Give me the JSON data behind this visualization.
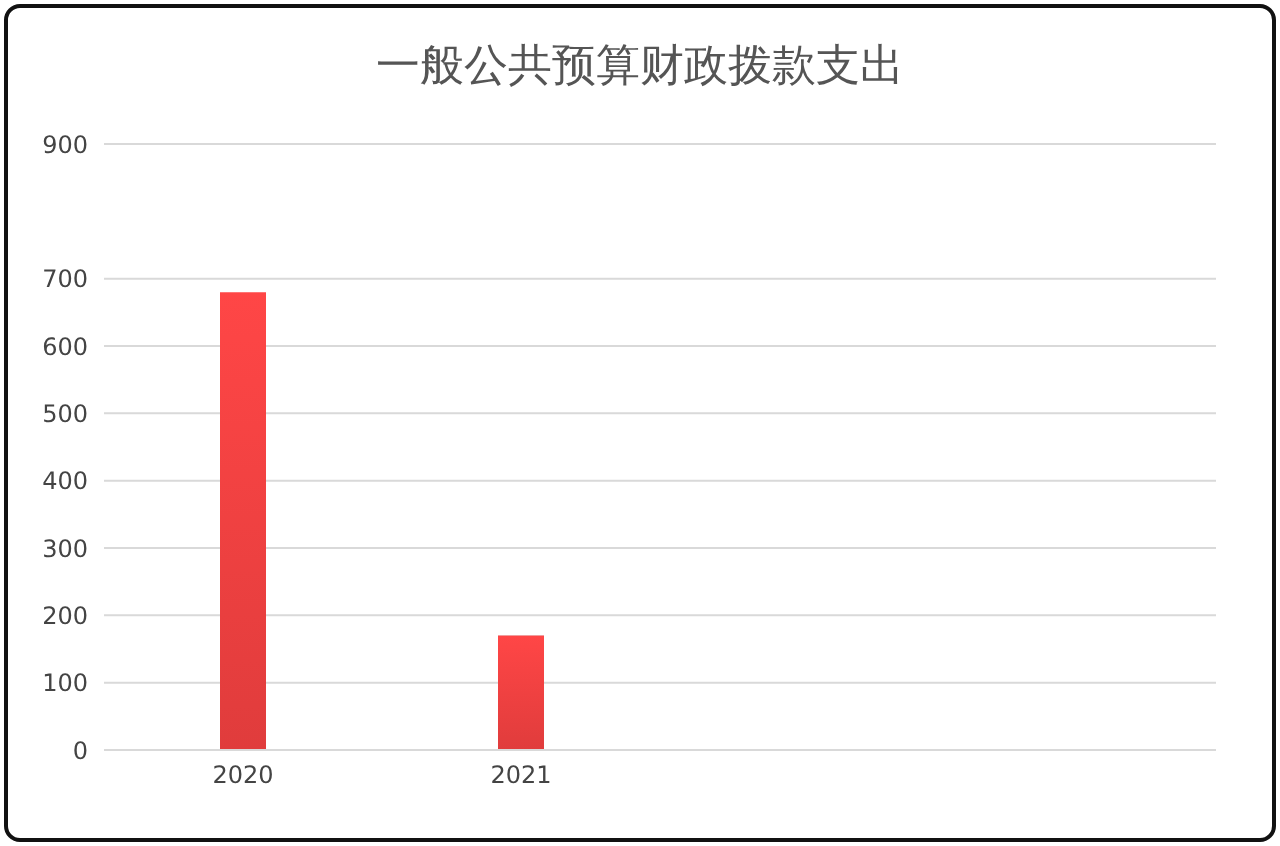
{
  "chart_data": {
    "type": "bar",
    "title": "一般公共预算财政拨款支出",
    "categories": [
      "2020",
      "2021",
      null,
      null
    ],
    "values": [
      680,
      170,
      null,
      null
    ],
    "color": "#e03c3c",
    "ylim": [
      0,
      900
    ],
    "yticks": [
      0,
      100,
      200,
      300,
      400,
      500,
      600,
      700,
      900
    ],
    "grid": "y"
  }
}
